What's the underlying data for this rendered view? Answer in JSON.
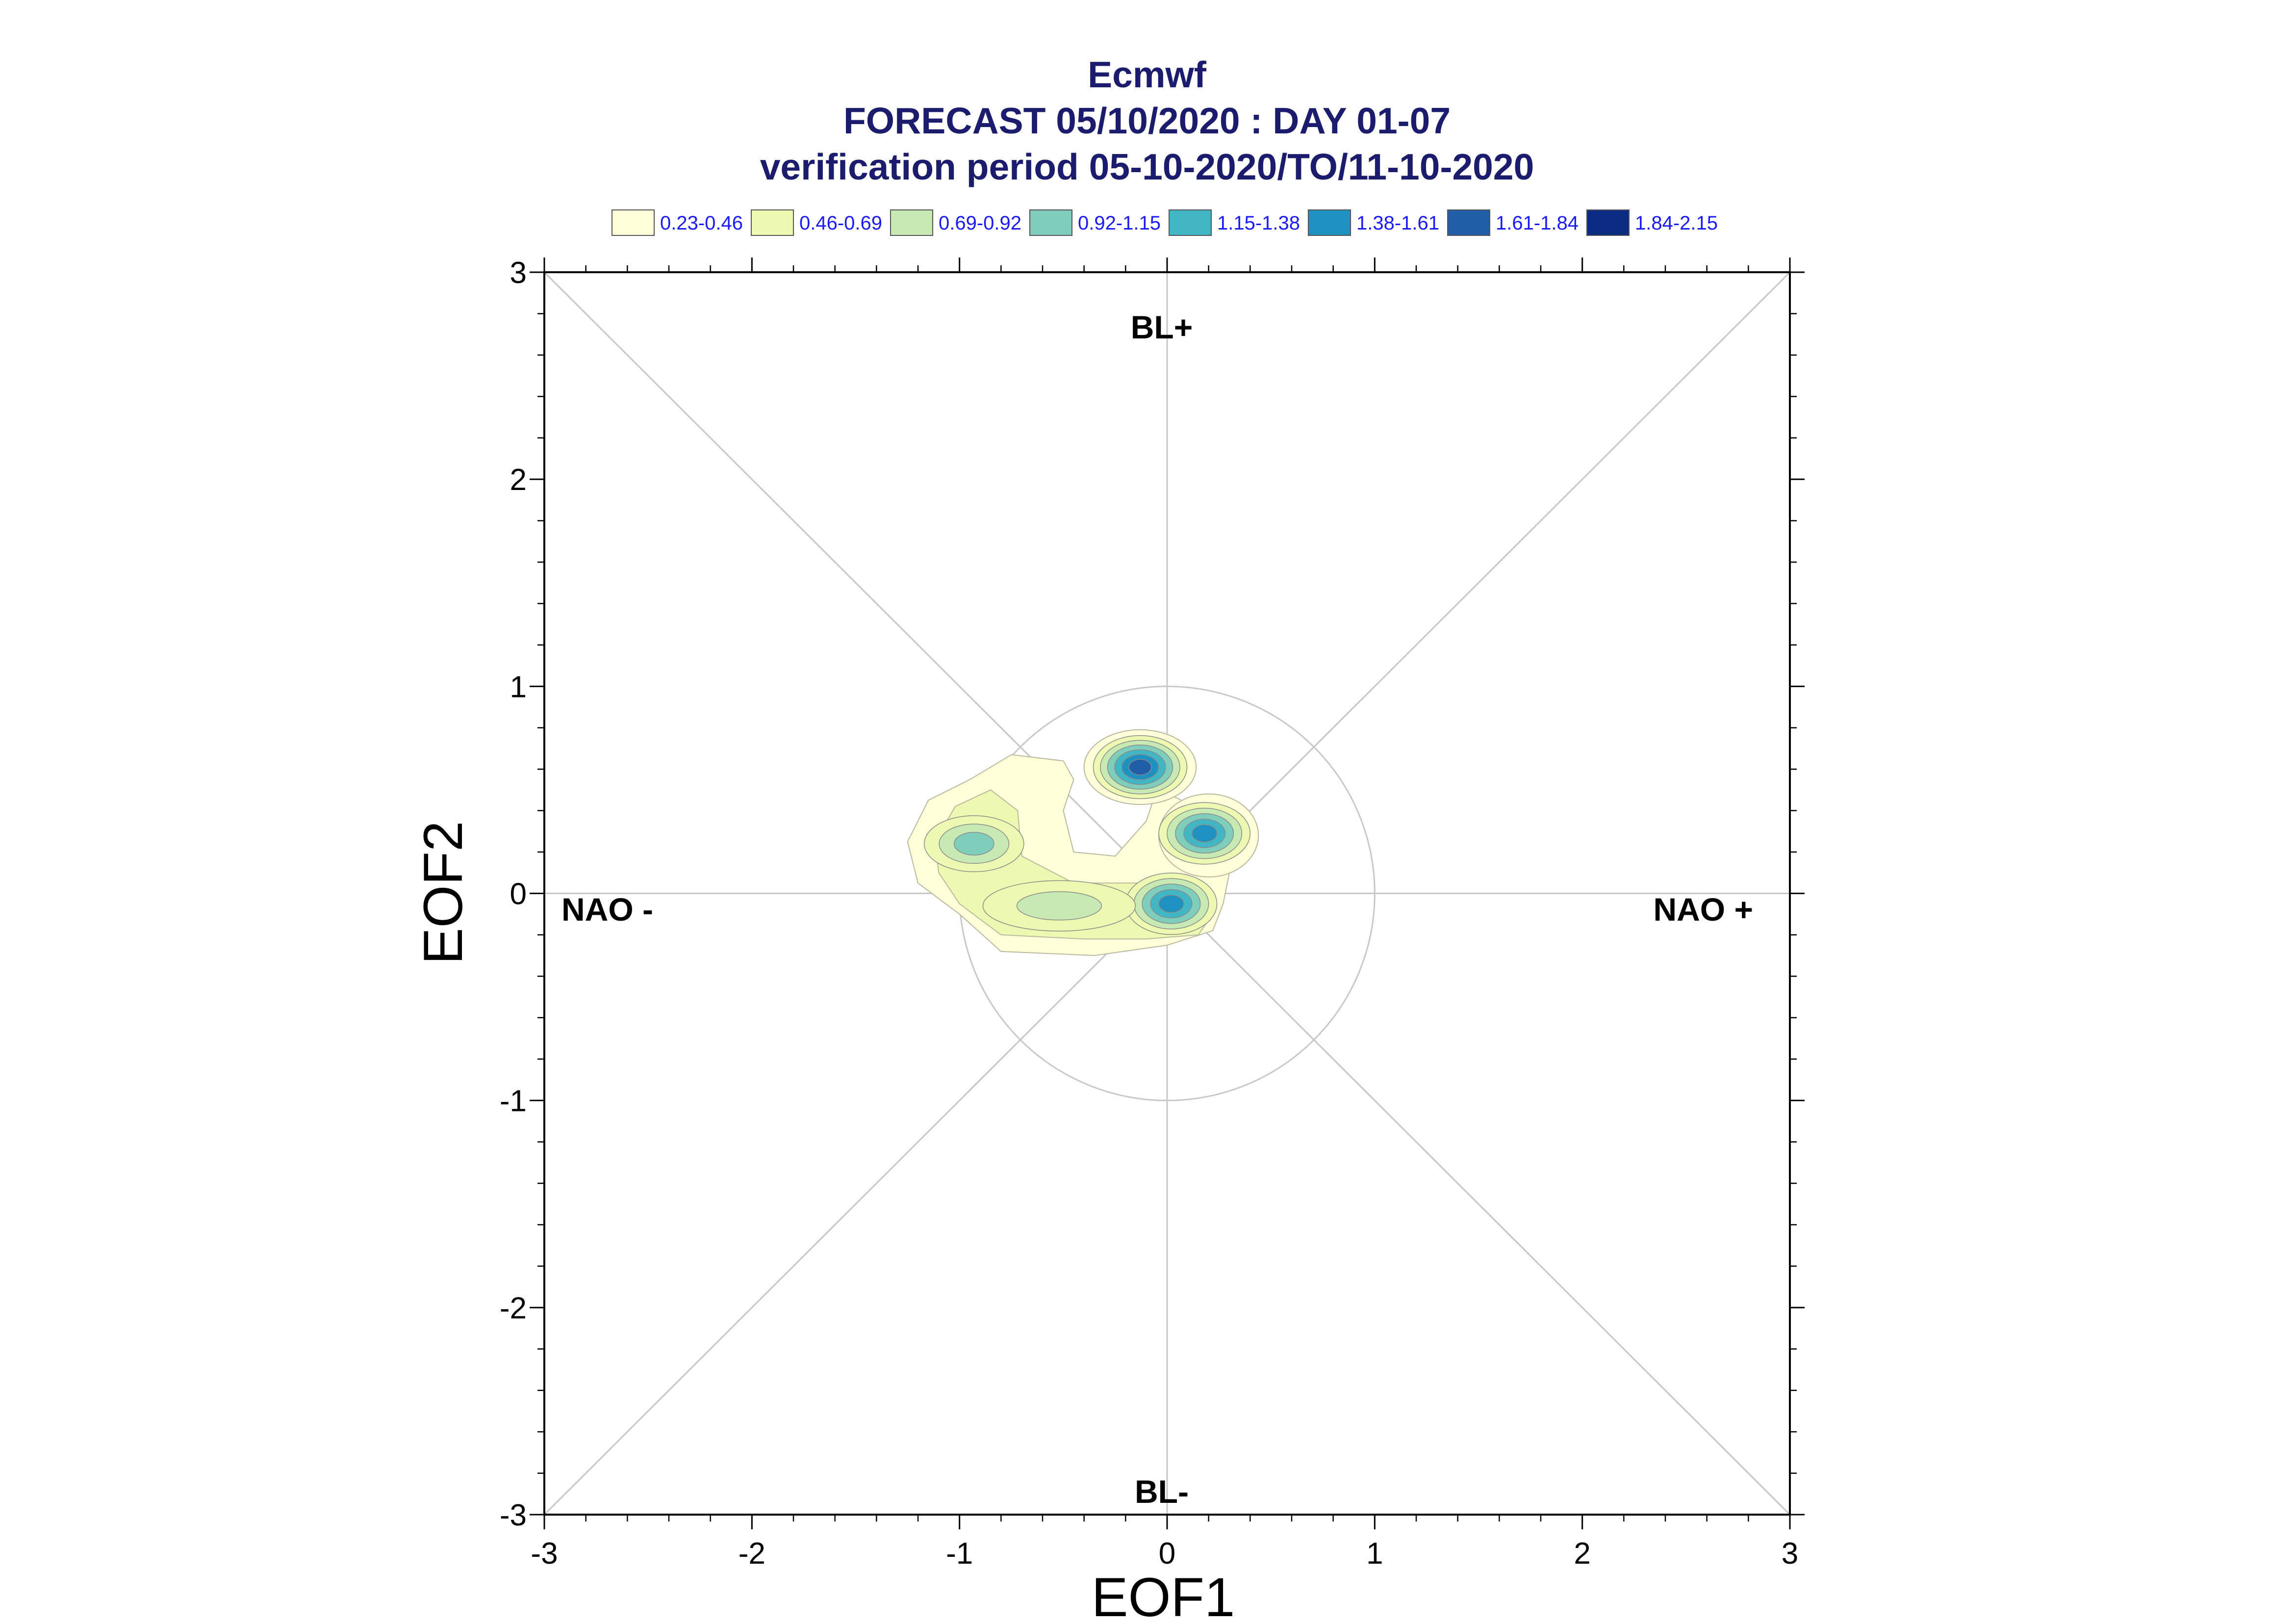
{
  "chart_data": {
    "type": "heatmap",
    "title_lines": [
      "Ecmwf",
      "FORECAST 05/10/2020 : DAY 01-07",
      "verification period 05-10-2020/TO/11-10-2020"
    ],
    "xlabel": "EOF1",
    "ylabel": "EOF2",
    "xlim": [
      -3,
      3
    ],
    "ylim": [
      -3,
      3
    ],
    "xticks": [
      "-3",
      "-2",
      "-1",
      "0",
      "1",
      "2",
      "3"
    ],
    "yticks": [
      "3",
      "2",
      "1",
      "0",
      "-1",
      "-2",
      "-3"
    ],
    "legend_position": "top",
    "legend": [
      {
        "label": "0.23-0.46",
        "color": "#ffffd9"
      },
      {
        "label": "0.46-0.69",
        "color": "#edf8b1"
      },
      {
        "label": "0.69-0.92",
        "color": "#c7e9b4"
      },
      {
        "label": "0.92-1.15",
        "color": "#7fcdbb"
      },
      {
        "label": "1.15-1.38",
        "color": "#41b6c4"
      },
      {
        "label": "1.38-1.61",
        "color": "#1d91c0"
      },
      {
        "label": "1.61-1.84",
        "color": "#225ea8"
      },
      {
        "label": "1.84-2.15",
        "color": "#0c2c84"
      }
    ],
    "regime_labels": {
      "top": "BL+",
      "bottom": "BL-",
      "left": "NAO -",
      "right": "NAO +"
    },
    "reference_circle_radius": 1,
    "density_peaks": [
      {
        "x": -0.13,
        "y": 0.61,
        "max_level": 7
      },
      {
        "x": 0.18,
        "y": 0.29,
        "max_level": 6
      },
      {
        "x": 0.02,
        "y": -0.05,
        "max_level": 6
      },
      {
        "x": -0.93,
        "y": 0.24,
        "max_level": 4
      },
      {
        "x": -0.52,
        "y": -0.06,
        "max_level": 3
      }
    ]
  }
}
